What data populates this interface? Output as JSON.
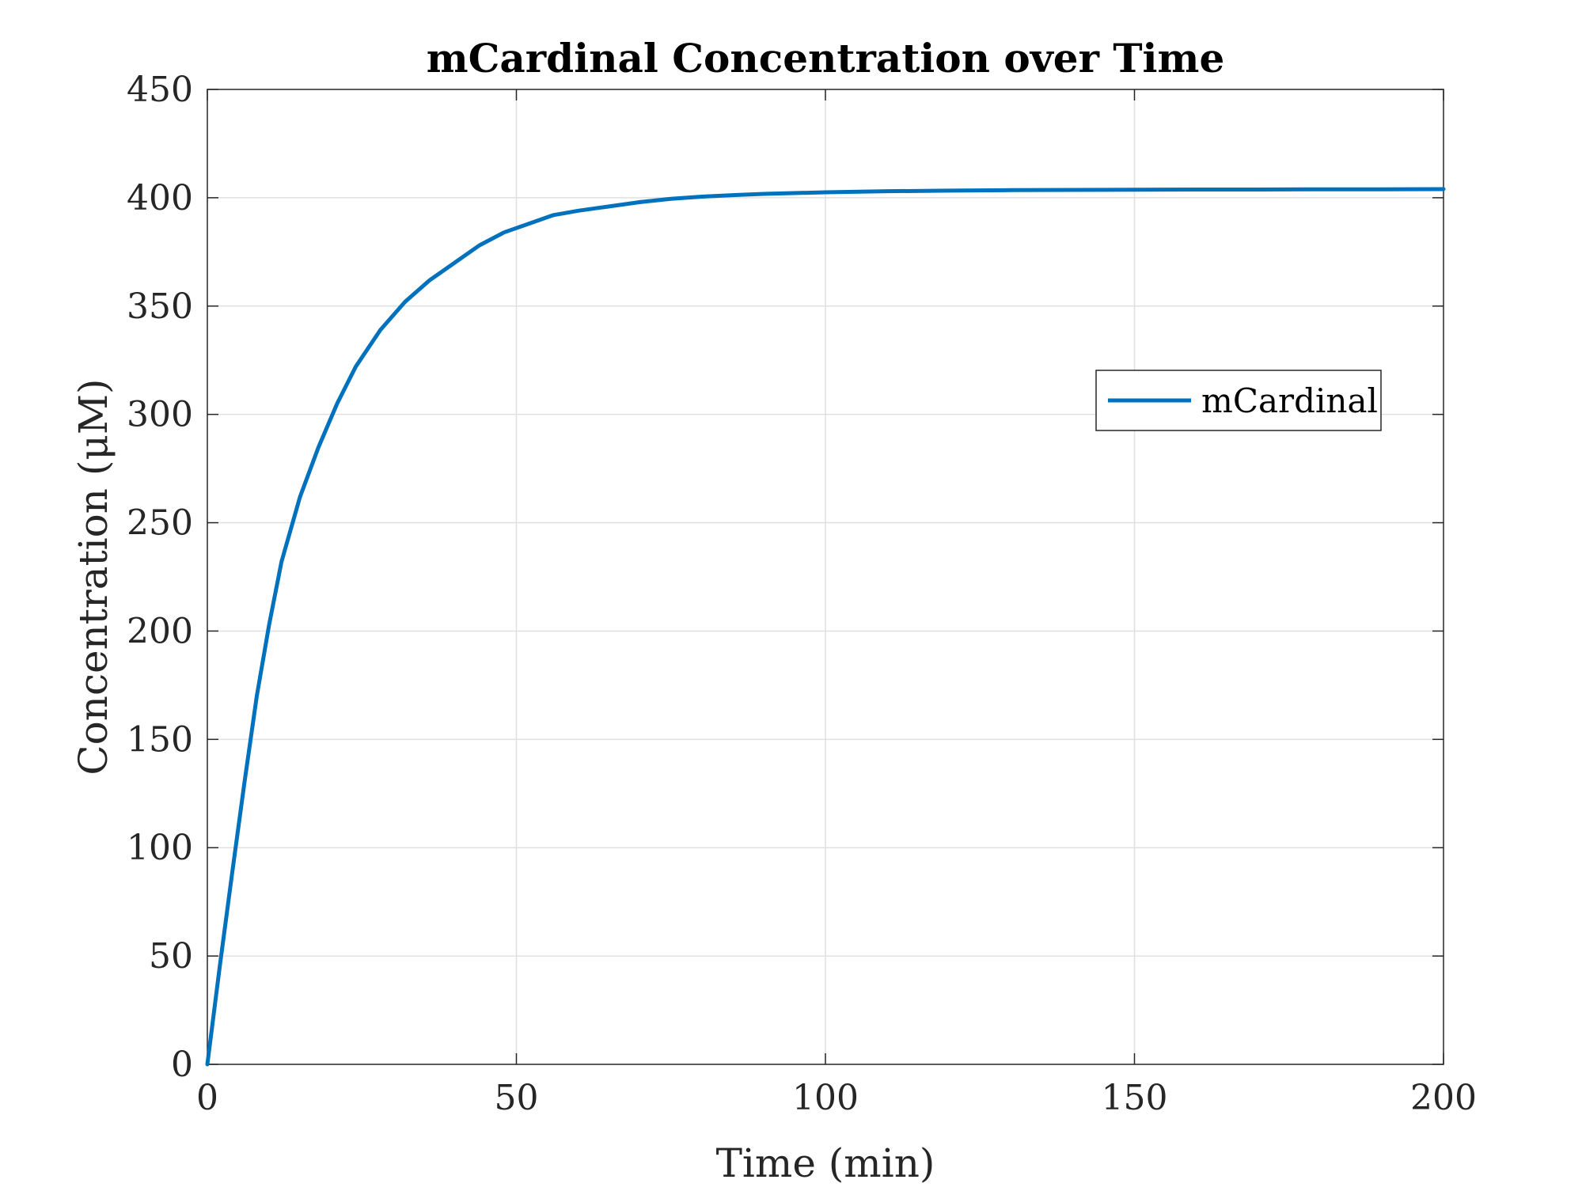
{
  "colors": {
    "series": "#0072BD",
    "grid": "#e0e0e0",
    "axis": "#262626",
    "background": "#ffffff"
  },
  "chart_data": {
    "type": "line",
    "title": "mCardinal Concentration over Time",
    "xlabel": "Time (min)",
    "ylabel": "Concentration (μM)",
    "xlim": [
      0,
      200
    ],
    "ylim": [
      0,
      450
    ],
    "xticks": [
      0,
      50,
      100,
      150,
      200
    ],
    "yticks": [
      0,
      50,
      100,
      150,
      200,
      250,
      300,
      350,
      400,
      450
    ],
    "grid": true,
    "legend_position": "upper-right-center",
    "series": [
      {
        "name": "mCardinal",
        "x": [
          0,
          2,
          4,
          6,
          8,
          10,
          12,
          15,
          18,
          21,
          24,
          28,
          32,
          36,
          40,
          44,
          48,
          52,
          56,
          60,
          65,
          70,
          75,
          80,
          85,
          90,
          100,
          110,
          120,
          130,
          140,
          150,
          160,
          170,
          180,
          190,
          200
        ],
        "y": [
          0,
          45,
          88,
          130,
          170,
          203,
          232,
          262,
          285,
          305,
          322,
          339,
          352,
          362,
          370,
          378,
          384,
          388,
          392,
          394,
          396,
          398,
          399.5,
          400.5,
          401.2,
          401.8,
          402.5,
          403,
          403.3,
          403.5,
          403.6,
          403.7,
          403.8,
          403.8,
          403.9,
          403.9,
          404
        ]
      }
    ]
  }
}
